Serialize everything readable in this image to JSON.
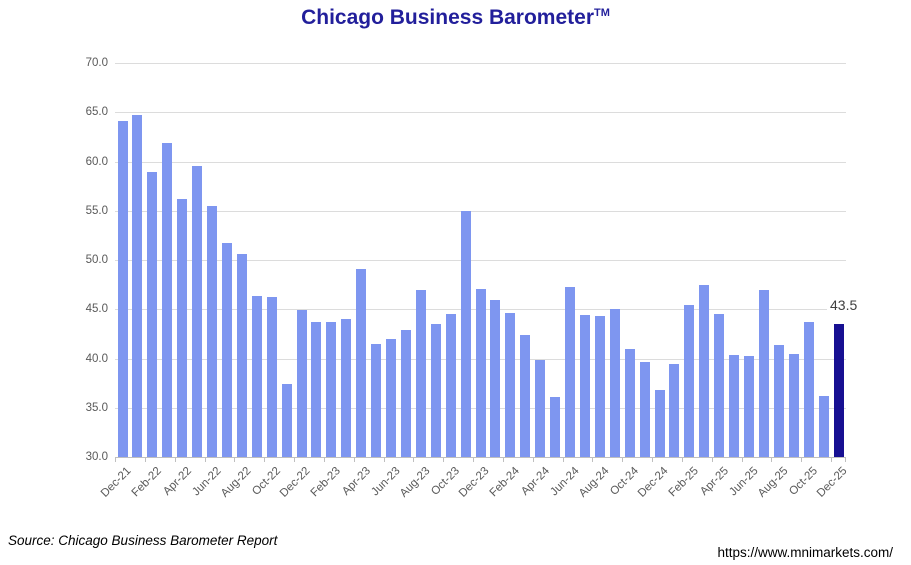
{
  "title": {
    "text": "Chicago Business Barometer",
    "trademark": "TM"
  },
  "footer": {
    "source": "Source: Chicago Business Barometer Report",
    "url": "https://www.mnimarkets.com/"
  },
  "colors": {
    "bar": "#7E96F0",
    "highlight_bar": "#171092",
    "title_text": "#221F9B",
    "gridline": "#DCDCDC",
    "axis_line": "#BFBFBF",
    "axis_text": "#595959",
    "annotation_text": "#3F3F3F"
  },
  "chart_data": {
    "type": "bar",
    "title": "Chicago Business Barometer (TM)",
    "categories": [
      "Dec-21",
      "Jan-22",
      "Feb-22",
      "Mar-22",
      "Apr-22",
      "May-22",
      "Jun-22",
      "Jul-22",
      "Aug-22",
      "Sep-22",
      "Oct-22",
      "Nov-22",
      "Dec-22",
      "Jan-23",
      "Feb-23",
      "Mar-23",
      "Apr-23",
      "May-23",
      "Jun-23",
      "Jul-23",
      "Aug-23",
      "Sep-23",
      "Oct-23",
      "Nov-23",
      "Dec-23",
      "Jan-24",
      "Feb-24",
      "Mar-24",
      "Apr-24",
      "May-24",
      "Jun-24",
      "Jul-24",
      "Aug-24",
      "Sep-24",
      "Oct-24",
      "Nov-24",
      "Dec-24",
      "Jan-25",
      "Feb-25",
      "Mar-25",
      "Apr-25",
      "May-25",
      "Jun-25",
      "Jul-25",
      "Aug-25",
      "Sep-25",
      "Oct-25",
      "Nov-25",
      "Dec-25"
    ],
    "values": [
      64.1,
      64.7,
      58.9,
      61.9,
      56.2,
      59.5,
      55.5,
      51.7,
      50.6,
      46.3,
      46.2,
      37.4,
      44.9,
      43.7,
      43.7,
      44.0,
      49.1,
      41.5,
      42.0,
      42.9,
      47.0,
      43.5,
      44.5,
      55.0,
      47.1,
      45.9,
      44.6,
      42.4,
      39.9,
      36.1,
      47.3,
      44.4,
      44.3,
      45.0,
      41.0,
      39.7,
      36.8,
      39.4,
      45.4,
      47.5,
      44.5,
      40.4,
      40.3,
      47.0,
      41.4,
      40.5,
      43.7,
      36.2,
      43.5
    ],
    "highlight_index": 48,
    "data_label": {
      "index": 48,
      "text": "43.5"
    },
    "xlabel": "",
    "ylabel": "",
    "ylim": [
      30.0,
      70.0
    ],
    "ytick_step": 5,
    "ytick_format": "one_decimal",
    "xtick_interval": 2,
    "grid": "horizontal",
    "legend": "none"
  }
}
